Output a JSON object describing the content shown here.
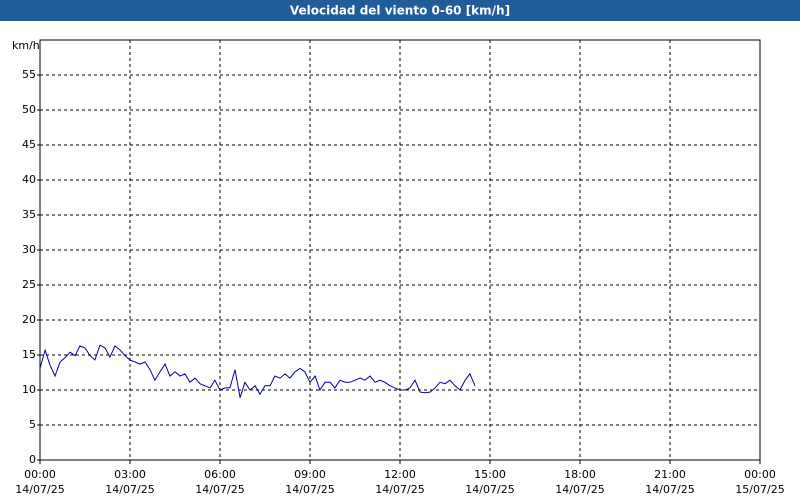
{
  "chart_data": {
    "type": "line",
    "title": "Velocidad del viento 0-60 [km/h]",
    "y_label": "km/h",
    "x": [
      0,
      0.17,
      0.33,
      0.5,
      0.67,
      0.83,
      1,
      1.17,
      1.33,
      1.5,
      1.67,
      1.83,
      2,
      2.17,
      2.33,
      2.5,
      2.67,
      2.83,
      3,
      3.17,
      3.33,
      3.5,
      3.67,
      3.83,
      4,
      4.17,
      4.33,
      4.5,
      4.67,
      4.83,
      5,
      5.17,
      5.33,
      5.5,
      5.67,
      5.83,
      6,
      6.17,
      6.33,
      6.5,
      6.67,
      6.83,
      7,
      7.17,
      7.33,
      7.5,
      7.67,
      7.83,
      8,
      8.17,
      8.33,
      8.5,
      8.67,
      8.83,
      9,
      9.17,
      9.33,
      9.5,
      9.67,
      9.83,
      10,
      10.17,
      10.33,
      10.5,
      10.67,
      10.83,
      11,
      11.17,
      11.33,
      11.5,
      11.67,
      11.83,
      12,
      12.17,
      12.33,
      12.5,
      12.67,
      12.83,
      13,
      13.17,
      13.33,
      13.5,
      13.67,
      13.83,
      14,
      14.17,
      14.33,
      14.5
    ],
    "values": [
      13.1,
      15.7,
      13.6,
      12,
      14,
      14.6,
      15.4,
      14.9,
      16.3,
      16,
      14.9,
      14.3,
      16.4,
      16,
      14.7,
      16.3,
      15.7,
      14.9,
      14.3,
      14,
      13.7,
      14,
      12.9,
      11.4,
      12.6,
      13.7,
      12,
      12.6,
      12,
      12.3,
      11.1,
      11.7,
      10.9,
      10.6,
      10.3,
      11.4,
      10,
      10.3,
      10.3,
      12.9,
      8.9,
      11.1,
      10,
      10.6,
      9.4,
      10.6,
      10.6,
      12,
      11.7,
      12.3,
      11.7,
      12.6,
      13.1,
      12.6,
      11.1,
      12,
      10,
      11.1,
      11.1,
      10.3,
      11.4,
      11.1,
      11.1,
      11.4,
      11.7,
      11.4,
      12,
      11.1,
      11.4,
      11.1,
      10.6,
      10.3,
      10,
      10,
      10.3,
      11.4,
      9.7,
      9.6,
      9.7,
      10.3,
      11.1,
      10.9,
      11.4,
      10.6,
      10,
      11.4,
      12.3,
      10.6
    ],
    "color": "#0000a0",
    "xlim": [
      0,
      24
    ],
    "xticks": [
      {
        "value": 0,
        "label": "00:00\n14/07/25"
      },
      {
        "value": 3,
        "label": "03:00\n14/07/25"
      },
      {
        "value": 6,
        "label": "06:00\n14/07/25"
      },
      {
        "value": 9,
        "label": "09:00\n14/07/25"
      },
      {
        "value": 12,
        "label": "12:00\n14/07/25"
      },
      {
        "value": 15,
        "label": "15:00\n14/07/25"
      },
      {
        "value": 18,
        "label": "18:00\n14/07/25"
      },
      {
        "value": 21,
        "label": "21:00\n14/07/25"
      },
      {
        "value": 24,
        "label": "00:00\n15/07/25"
      }
    ],
    "ylim": [
      0,
      60
    ],
    "yticks": [
      0,
      5,
      10,
      15,
      20,
      25,
      30,
      35,
      40,
      45,
      50,
      55
    ],
    "grid": true
  }
}
